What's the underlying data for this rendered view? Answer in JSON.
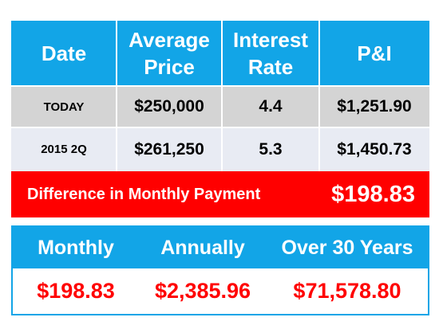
{
  "table": {
    "headers": {
      "date": "Date",
      "avg_price_line1": "Average",
      "avg_price_line2": "Price",
      "rate_line1": "Interest",
      "rate_line2": "Rate",
      "pi": "P&I"
    },
    "rows": [
      {
        "date": "TODAY",
        "price": "$250,000",
        "rate": "4.4",
        "pi": "$1,251.90"
      },
      {
        "date": "2015 2Q",
        "price": "$261,250",
        "rate": "5.3",
        "pi": "$1,450.73"
      }
    ]
  },
  "difference": {
    "label": "Difference in Monthly Payment",
    "value": "$198.83"
  },
  "summary": {
    "headers": [
      "Monthly",
      "Annually",
      "Over 30 Years"
    ],
    "values": [
      "$198.83",
      "$2,385.96",
      "$71,578.80"
    ]
  },
  "colors": {
    "header_blue": "#12a5e7",
    "row_gray": "#d4d4d4",
    "row_light": "#e8ebf3",
    "highlight_red": "#ff0000"
  }
}
